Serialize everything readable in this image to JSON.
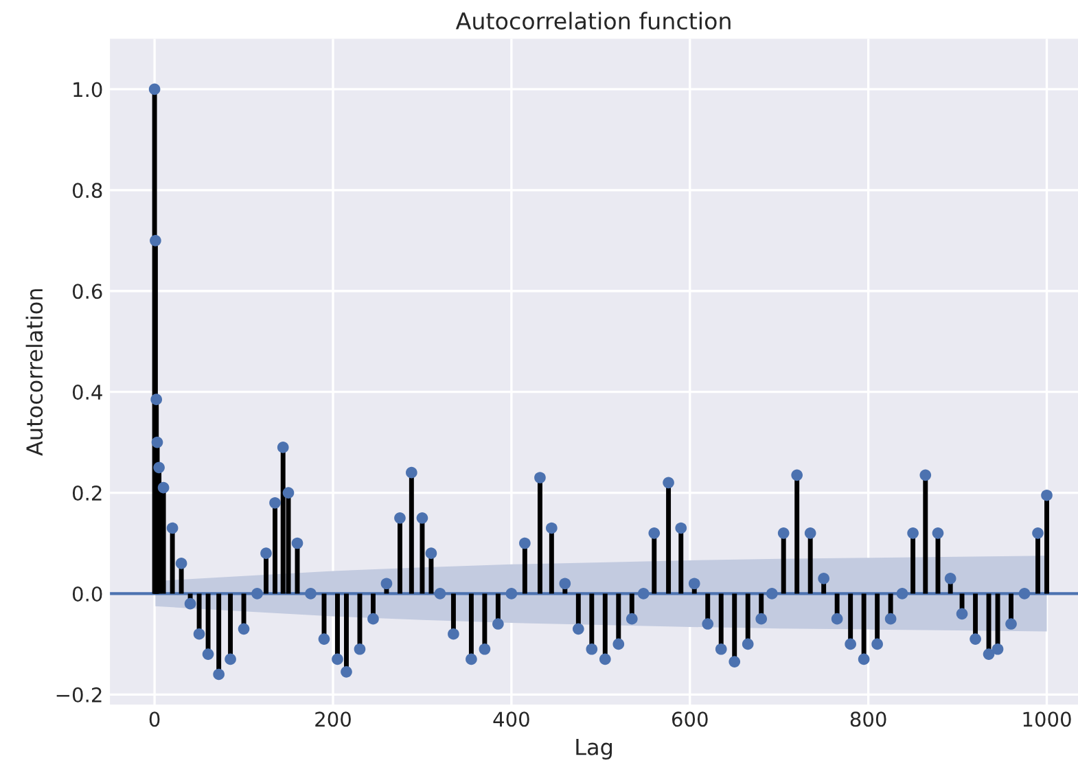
{
  "chart_data": {
    "type": "lollipop",
    "title": "Autocorrelation function",
    "xlabel": "Lag",
    "ylabel": "Autocorrelation",
    "xlim": [
      -50,
      1035
    ],
    "ylim": [
      -0.22,
      1.1
    ],
    "xticks": [
      0,
      200,
      400,
      600,
      800,
      1000
    ],
    "yticks": [
      {
        "value": -0.2,
        "label": "−0.2"
      },
      {
        "value": 0,
        "label": "0.0"
      },
      {
        "value": 0.2,
        "label": "0.2"
      },
      {
        "value": 0.4,
        "label": "0.4"
      },
      {
        "value": 0.6,
        "label": "0.6"
      },
      {
        "value": 0.8,
        "label": "0.8"
      },
      {
        "value": 1,
        "label": "1.0"
      }
    ],
    "grid": true,
    "marker": "circle",
    "ref_lines": [
      {
        "axis": "y",
        "value": 0,
        "color": "#4c72b0"
      }
    ],
    "series": [
      {
        "color": "#4c72b0",
        "x": [
          0,
          1,
          2,
          3,
          5,
          10,
          20,
          30,
          40,
          50,
          60,
          72,
          85,
          100,
          115,
          125,
          135,
          144,
          150,
          160,
          175,
          190,
          205,
          215,
          230,
          245,
          260,
          275,
          288,
          300,
          310,
          320,
          335,
          355,
          370,
          385,
          400,
          415,
          432,
          445,
          460,
          475,
          490,
          505,
          520,
          535,
          548,
          560,
          576,
          590,
          605,
          620,
          635,
          650,
          665,
          680,
          692,
          705,
          720,
          735,
          750,
          765,
          780,
          795,
          810,
          825,
          838,
          850,
          864,
          878,
          892,
          905,
          920,
          935,
          945,
          960,
          975,
          990,
          1000
        ],
        "values": [
          1.0,
          0.7,
          0.385,
          0.3,
          0.25,
          0.21,
          0.13,
          0.06,
          -0.02,
          -0.08,
          -0.12,
          -0.16,
          -0.13,
          -0.07,
          0.0,
          0.08,
          0.18,
          0.29,
          0.2,
          0.1,
          0.0,
          -0.09,
          -0.13,
          -0.155,
          -0.11,
          -0.05,
          0.02,
          0.15,
          0.24,
          0.15,
          0.08,
          0.0,
          -0.08,
          -0.13,
          -0.11,
          -0.06,
          0.0,
          0.1,
          0.23,
          0.13,
          0.02,
          -0.07,
          -0.11,
          -0.13,
          -0.1,
          -0.05,
          0.0,
          0.12,
          0.22,
          0.13,
          0.02,
          -0.06,
          -0.11,
          -0.135,
          -0.1,
          -0.05,
          0.0,
          0.12,
          0.235,
          0.12,
          0.03,
          -0.05,
          -0.1,
          -0.13,
          -0.1,
          -0.05,
          0.0,
          0.12,
          0.235,
          0.12,
          0.03,
          -0.04,
          -0.09,
          -0.12,
          -0.11,
          -0.06,
          0.0,
          0.12,
          0.195
        ]
      },
      {
        "type": "area",
        "color": "#c3cbe0",
        "x": [
          1,
          100,
          200,
          300,
          400,
          500,
          600,
          700,
          800,
          900,
          1000
        ],
        "values": [
          null,
          null,
          null,
          null,
          null,
          null,
          null,
          null,
          null,
          null,
          null
        ],
        "lower": [
          -0.025,
          -0.035,
          -0.045,
          -0.052,
          -0.058,
          -0.062,
          -0.066,
          -0.069,
          -0.071,
          -0.073,
          -0.075
        ],
        "upper": [
          0.025,
          0.035,
          0.045,
          0.052,
          0.058,
          0.062,
          0.066,
          0.069,
          0.071,
          0.073,
          0.075
        ]
      }
    ]
  }
}
